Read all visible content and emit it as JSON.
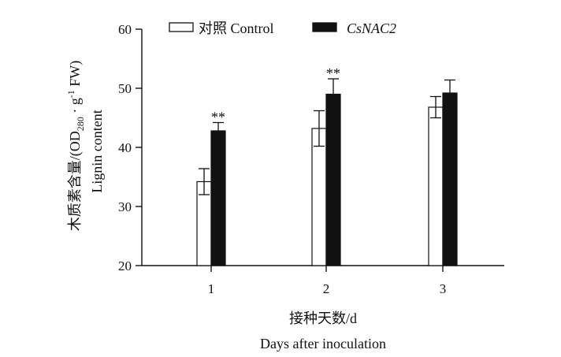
{
  "chart_data": {
    "type": "bar",
    "categories": [
      "1",
      "2",
      "3"
    ],
    "series": [
      {
        "name": "对照 Control",
        "values": [
          34.2,
          43.2,
          46.8
        ],
        "errors": [
          2.2,
          3.0,
          1.8
        ],
        "fill": "#ffffff",
        "stroke": "#111111"
      },
      {
        "name": "CsNAC2",
        "values": [
          42.8,
          49.0,
          49.2
        ],
        "errors": [
          1.4,
          2.6,
          2.2
        ],
        "fill": "#111111",
        "stroke": "#111111"
      }
    ],
    "significance": [
      "**",
      "**",
      ""
    ],
    "ylim": [
      20,
      60
    ],
    "yticks": [
      20,
      30,
      40,
      50,
      60
    ],
    "xlabel_cn": "接种天数/d",
    "xlabel_en": "Days after inoculation",
    "ylabel_cn_prefix": "木质素含量/(OD",
    "ylabel_sub": "280",
    "ylabel_mid": " · g",
    "ylabel_sup": "-1",
    "ylabel_suffix": " FW)",
    "ylabel_en": "Lignin content",
    "legend_position": "top",
    "grid": false
  }
}
